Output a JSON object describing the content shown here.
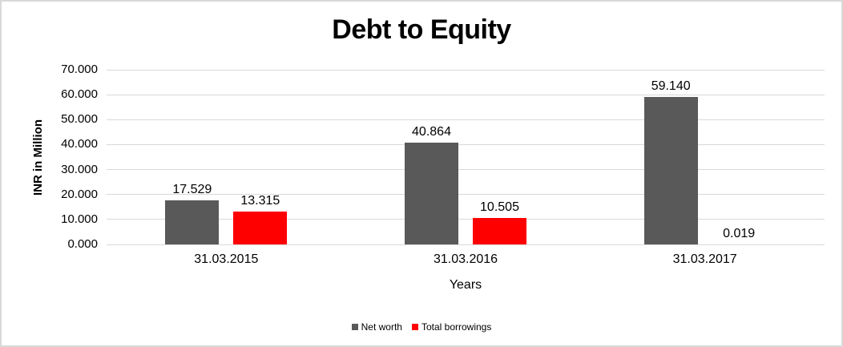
{
  "chart_data": {
    "type": "bar",
    "title": "Debt to Equity",
    "xlabel": "Years",
    "ylabel": "INR in Million",
    "categories": [
      "31.03.2015",
      "31.03.2016",
      "31.03.2017"
    ],
    "series": [
      {
        "name": "Net worth",
        "color": "#595959",
        "values": [
          17.529,
          40.864,
          59.14
        ],
        "labels": [
          "17.529",
          "40.864",
          "59.140"
        ]
      },
      {
        "name": "Total borrowings",
        "color": "#FF0000",
        "values": [
          13.315,
          10.505,
          0.019
        ],
        "labels": [
          "13.315",
          "10.505",
          "0.019"
        ]
      }
    ],
    "ylim": [
      0,
      70
    ],
    "yticks": [
      0,
      10,
      20,
      30,
      40,
      50,
      60,
      70
    ],
    "ytick_labels": [
      "0.000",
      "10.000",
      "20.000",
      "30.000",
      "40.000",
      "50.000",
      "60.000",
      "70.000"
    ],
    "grid": true,
    "grid_color": "#D9D9D9",
    "border_color": "#D9D9D9",
    "text_color": "#000000",
    "legend_position": "bottom"
  }
}
